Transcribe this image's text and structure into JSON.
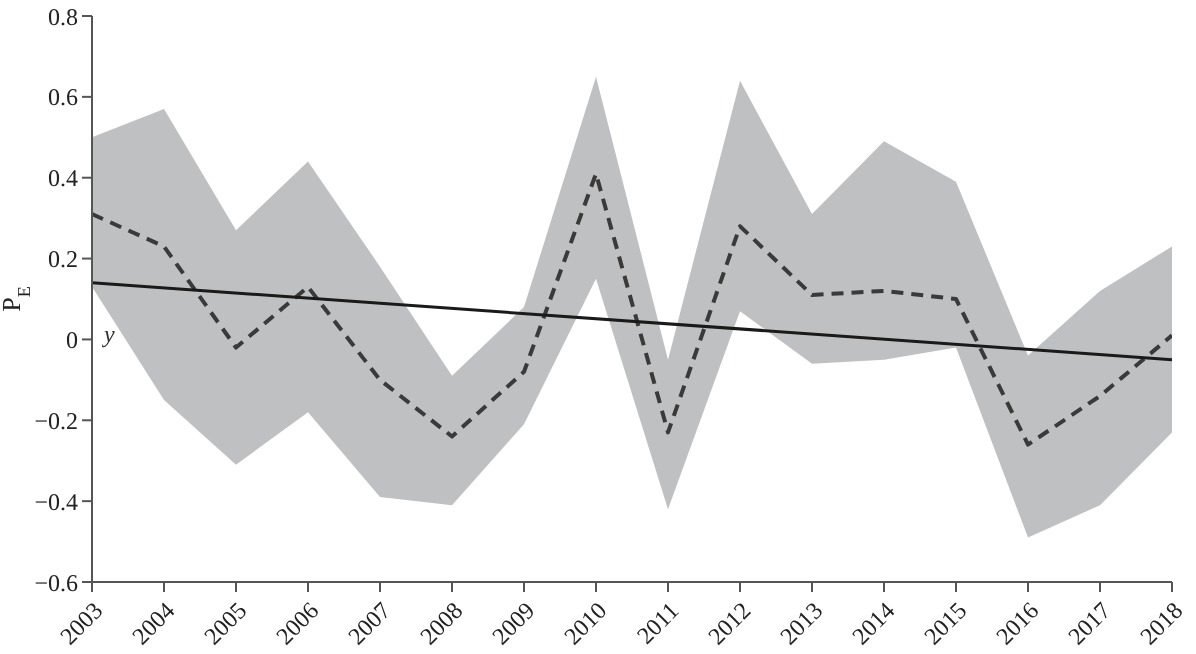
{
  "chart_data": {
    "type": "line",
    "ylabel": "P$_{E}$",
    "x": [
      2003,
      2004,
      2005,
      2006,
      2007,
      2008,
      2009,
      2010,
      2011,
      2012,
      2013,
      2014,
      2015,
      2016,
      2017,
      2018
    ],
    "series": [
      {
        "color": "#3a3a3a",
        "line_style": "dashed",
        "values": [
          0.31,
          0.23,
          -0.02,
          0.13,
          -0.1,
          -0.24,
          -0.08,
          0.41,
          -0.23,
          0.28,
          0.11,
          0.12,
          0.1,
          -0.26,
          -0.14,
          0.01
        ],
        "lower": [
          0.13,
          -0.15,
          -0.31,
          -0.18,
          -0.39,
          -0.41,
          -0.21,
          0.15,
          -0.42,
          0.07,
          -0.06,
          -0.05,
          -0.02,
          -0.49,
          -0.41,
          -0.23
        ],
        "upper": [
          0.5,
          0.57,
          0.27,
          0.44,
          0.18,
          -0.09,
          0.08,
          0.65,
          -0.05,
          0.64,
          0.31,
          0.49,
          0.39,
          -0.04,
          0.12,
          0.23
        ]
      },
      {
        "color": "#1a1a1a",
        "line_style": "solid",
        "x": [
          2003,
          2018
        ],
        "values": [
          0.14,
          -0.05
        ]
      }
    ],
    "annotations": [
      "y"
    ],
    "xlim": [
      2003,
      2018
    ],
    "xticks": [
      2003,
      2004,
      2005,
      2006,
      2007,
      2008,
      2009,
      2010,
      2011,
      2012,
      2013,
      2014,
      2015,
      2016,
      2017,
      2018
    ],
    "ylim": [
      -0.6,
      0.8
    ],
    "yticks": [
      -0.6,
      -0.4,
      -0.2,
      0,
      0.2,
      0.4,
      0.6,
      0.8
    ],
    "marker": "none"
  }
}
